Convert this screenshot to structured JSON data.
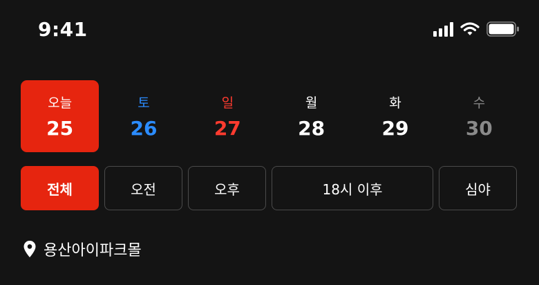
{
  "status_bar": {
    "time": "9:41",
    "icons": [
      "cellular-signal-icon",
      "wifi-icon",
      "battery-icon"
    ]
  },
  "dates": [
    {
      "dow": "오늘",
      "day": "25",
      "selected": true,
      "dow_color": "#ffffff",
      "day_color": "#ffffff"
    },
    {
      "dow": "토",
      "day": "26",
      "selected": false,
      "dow_color": "#2b8cff",
      "day_color": "#2b8cff"
    },
    {
      "dow": "일",
      "day": "27",
      "selected": false,
      "dow_color": "#ff3b2f",
      "day_color": "#ff3b2f"
    },
    {
      "dow": "월",
      "day": "28",
      "selected": false,
      "dow_color": "#ffffff",
      "day_color": "#ffffff"
    },
    {
      "dow": "화",
      "day": "29",
      "selected": false,
      "dow_color": "#ffffff",
      "day_color": "#ffffff"
    },
    {
      "dow": "수",
      "day": "30",
      "selected": false,
      "dow_color": "#8a8a8a",
      "day_color": "#8a8a8a"
    }
  ],
  "filters": [
    {
      "label": "전체",
      "selected": true
    },
    {
      "label": "오전",
      "selected": false
    },
    {
      "label": "오후",
      "selected": false
    },
    {
      "label": "18시 이후",
      "selected": false
    },
    {
      "label": "심야",
      "selected": false
    }
  ],
  "location": {
    "icon": "location-pin-icon",
    "name": "용산아이파크몰"
  },
  "colors": {
    "accent": "#e6250f",
    "background": "#141414",
    "chip_border": "#4b4b4b"
  }
}
